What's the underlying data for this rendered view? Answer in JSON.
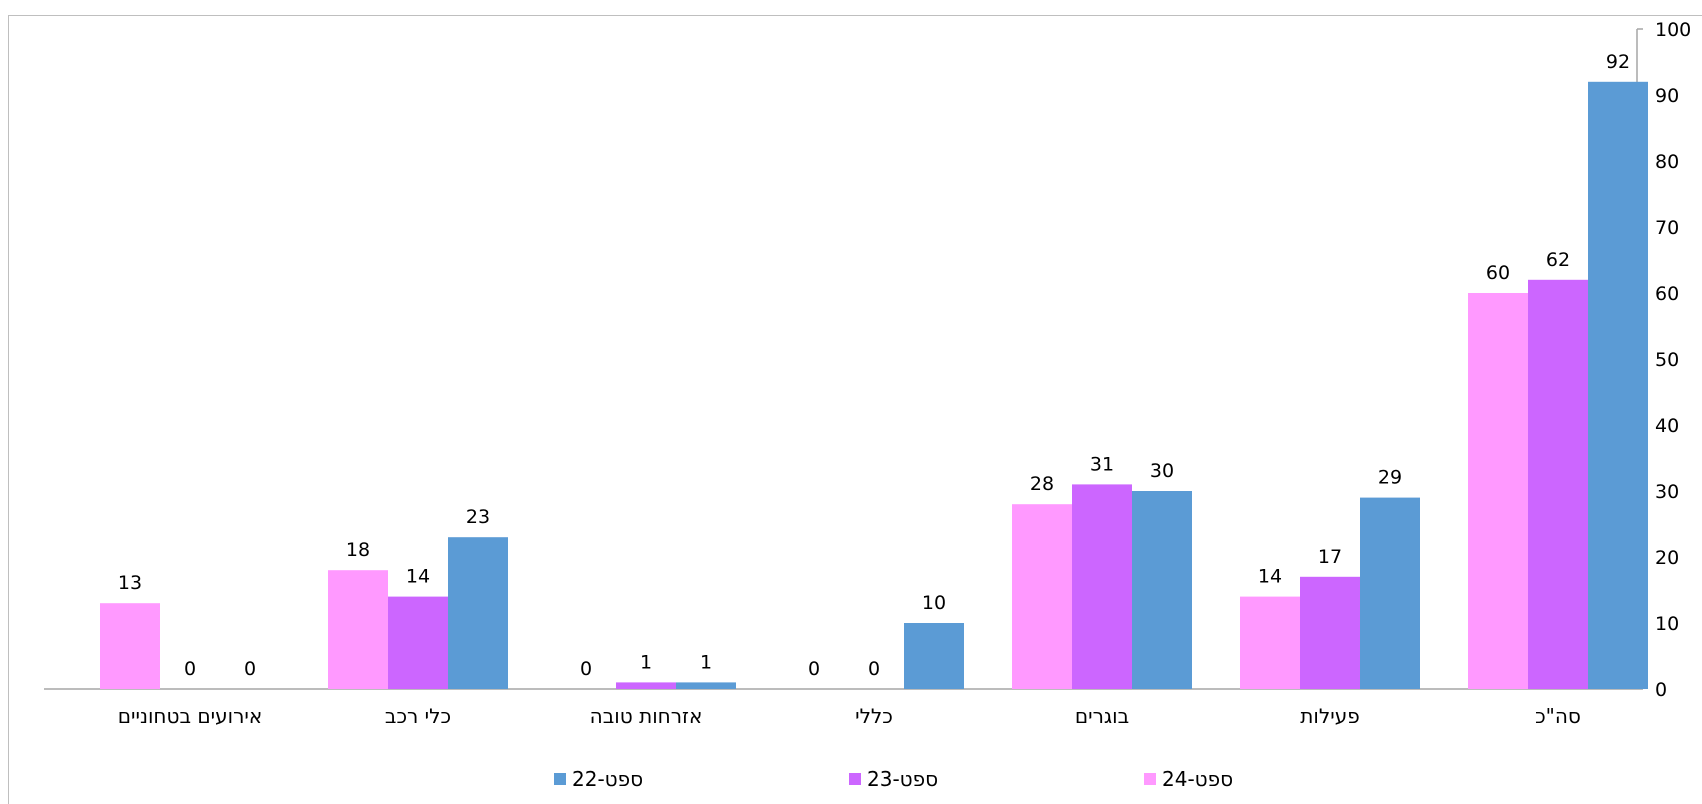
{
  "chart_data": {
    "type": "bar",
    "categories": [
      "סה\"כ",
      "פעילות",
      "בוגרים",
      "כללי",
      "אזרחות טובה",
      "כלי רכב",
      "אירועים בטחוניים"
    ],
    "series": [
      {
        "name": "ספט-24",
        "color": "#ff99ff",
        "values": [
          60,
          14,
          28,
          0,
          0,
          18,
          13
        ]
      },
      {
        "name": "ספט-23",
        "color": "#cc66ff",
        "values": [
          62,
          17,
          31,
          0,
          1,
          14,
          0
        ]
      },
      {
        "name": "ספט-22",
        "color": "#5b9bd5",
        "values": [
          92,
          29,
          30,
          10,
          1,
          23,
          0
        ]
      }
    ],
    "ylim": [
      0,
      100
    ],
    "yticks": [
      0,
      10,
      20,
      30,
      40,
      50,
      60,
      70,
      80,
      90,
      100
    ],
    "y_axis_side": "right",
    "category_order": "right-to-left",
    "data_labels": true,
    "grid": false,
    "legend_position": "bottom",
    "legend_order": [
      "ספט-22",
      "ספט-23",
      "ספט-24"
    ]
  }
}
